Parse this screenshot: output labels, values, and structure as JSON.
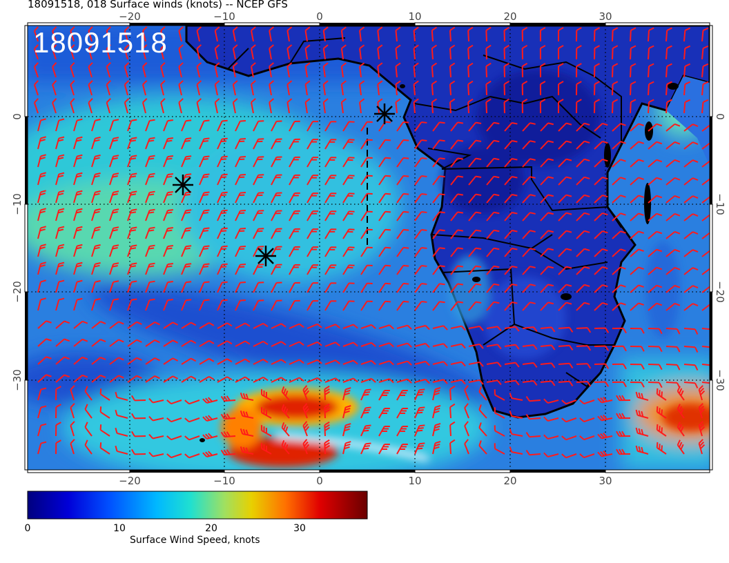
{
  "title": "18091518, 018 Surface winds (knots) -- NCEP GFS",
  "stamp": "18091518",
  "axes": {
    "lon_top": [
      "−20",
      "−10",
      "0",
      "10",
      "20",
      "30"
    ],
    "lon_bottom": [
      "−20",
      "−10",
      "0",
      "10",
      "20",
      "30"
    ],
    "lat_left": [
      "0",
      "−10",
      "−20",
      "−30"
    ],
    "lat_right": [
      "0",
      "−10",
      "−20",
      "−30"
    ]
  },
  "colorbar": {
    "label": "Surface Wind Speed, knots",
    "ticks": [
      "0",
      "10",
      "20",
      "30"
    ],
    "range": [
      0,
      37
    ],
    "colors": [
      "#00007f",
      "#0000d8",
      "#0050ff",
      "#00b8ff",
      "#20e0d0",
      "#c8d800",
      "#ffb000",
      "#ff3000",
      "#c00000",
      "#7f0000"
    ]
  },
  "markers": [
    "storm-center-1",
    "storm-center-2",
    "storm-center-3"
  ],
  "colors": {
    "barb": "#ff1a1a",
    "coast": "#000000",
    "grid": "#000000"
  }
}
